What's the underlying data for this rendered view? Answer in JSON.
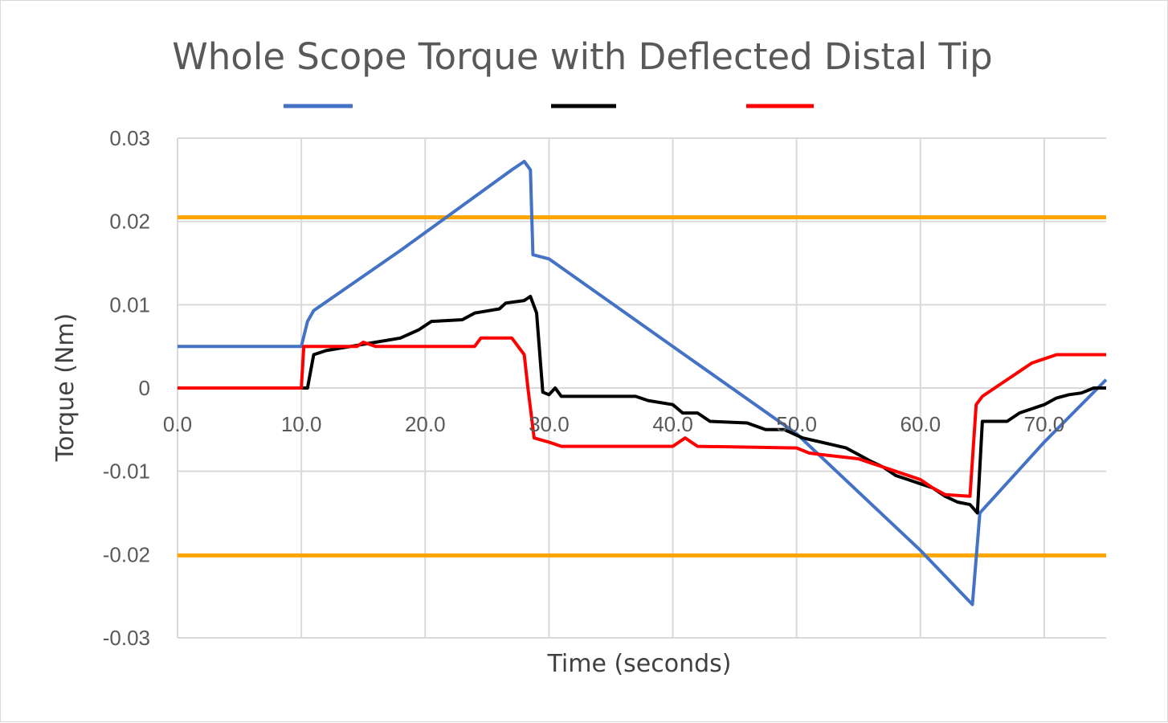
{
  "chart_data": {
    "type": "line",
    "title": "Whole Scope Torque with Deflected Distal Tip",
    "xlabel": "Time (seconds)",
    "ylabel": "Torque (Nm)",
    "xlim": [
      0,
      75
    ],
    "ylim": [
      -0.03,
      0.03
    ],
    "x_ticks": [
      "0.0",
      "10.0",
      "20.0",
      "30.0",
      "40.0",
      "50.0",
      "60.0",
      "70.0"
    ],
    "y_ticks": [
      "0.03",
      "0.02",
      "0.01",
      "0",
      "-0.01",
      "-0.02",
      "-0.03"
    ],
    "grid": true,
    "legend_position": "top",
    "limits": [
      {
        "value": 0.0205,
        "color": "#ffa500"
      },
      {
        "value": -0.0201,
        "color": "#ffa500"
      }
    ],
    "series": [
      {
        "color": "#4472c4",
        "points": [
          [
            0,
            0.005
          ],
          [
            10,
            0.005
          ],
          [
            10.5,
            0.008
          ],
          [
            11,
            0.0093
          ],
          [
            18,
            0.0165
          ],
          [
            27,
            0.0262
          ],
          [
            28,
            0.0272
          ],
          [
            28.5,
            0.0262
          ],
          [
            28.7,
            0.016
          ],
          [
            30,
            0.0155
          ],
          [
            40,
            0.005
          ],
          [
            50,
            -0.0055
          ],
          [
            60,
            -0.0195
          ],
          [
            64.2,
            -0.026
          ],
          [
            64.8,
            -0.015
          ],
          [
            70,
            -0.0065
          ],
          [
            75,
            0.001
          ]
        ]
      },
      {
        "color": "#000000",
        "points": [
          [
            0,
            0
          ],
          [
            10.5,
            0
          ],
          [
            11,
            0.004
          ],
          [
            12,
            0.0045
          ],
          [
            14,
            0.005
          ],
          [
            16,
            0.0055
          ],
          [
            18,
            0.006
          ],
          [
            19.5,
            0.007
          ],
          [
            20.5,
            0.008
          ],
          [
            23,
            0.0082
          ],
          [
            24,
            0.009
          ],
          [
            26,
            0.0095
          ],
          [
            26.5,
            0.0102
          ],
          [
            28,
            0.0105
          ],
          [
            28.5,
            0.011
          ],
          [
            29,
            0.009
          ],
          [
            29.5,
            -0.0005
          ],
          [
            30,
            -0.0008
          ],
          [
            30.5,
            0
          ],
          [
            31,
            -0.001
          ],
          [
            37,
            -0.001
          ],
          [
            38,
            -0.0015
          ],
          [
            40,
            -0.002
          ],
          [
            40.8,
            -0.003
          ],
          [
            42,
            -0.003
          ],
          [
            43,
            -0.004
          ],
          [
            46,
            -0.0042
          ],
          [
            47.5,
            -0.005
          ],
          [
            49,
            -0.005
          ],
          [
            50.5,
            -0.006
          ],
          [
            52,
            -0.0065
          ],
          [
            54,
            -0.0072
          ],
          [
            55,
            -0.008
          ],
          [
            56,
            -0.0088
          ],
          [
            57,
            -0.0095
          ],
          [
            58,
            -0.0105
          ],
          [
            59,
            -0.011
          ],
          [
            60,
            -0.0115
          ],
          [
            61,
            -0.012
          ],
          [
            62,
            -0.013
          ],
          [
            63,
            -0.0137
          ],
          [
            64,
            -0.014
          ],
          [
            64.6,
            -0.015
          ],
          [
            65,
            -0.004
          ],
          [
            67,
            -0.004
          ],
          [
            68,
            -0.003
          ],
          [
            69,
            -0.0025
          ],
          [
            70,
            -0.002
          ],
          [
            71,
            -0.0012
          ],
          [
            72,
            -0.0008
          ],
          [
            73,
            -0.0006
          ],
          [
            74,
            0
          ],
          [
            75,
            0
          ]
        ]
      },
      {
        "color": "#ff0000",
        "points": [
          [
            0,
            0
          ],
          [
            10,
            0
          ],
          [
            10.2,
            0.005
          ],
          [
            14.5,
            0.005
          ],
          [
            15,
            0.0055
          ],
          [
            16,
            0.005
          ],
          [
            24,
            0.005
          ],
          [
            24.5,
            0.006
          ],
          [
            27,
            0.006
          ],
          [
            28,
            0.004
          ],
          [
            28.3,
            0
          ],
          [
            28.8,
            -0.006
          ],
          [
            30,
            -0.0065
          ],
          [
            31,
            -0.007
          ],
          [
            40,
            -0.007
          ],
          [
            41,
            -0.006
          ],
          [
            42,
            -0.007
          ],
          [
            50,
            -0.0072
          ],
          [
            51,
            -0.0078
          ],
          [
            52,
            -0.008
          ],
          [
            55,
            -0.0085
          ],
          [
            56,
            -0.009
          ],
          [
            57,
            -0.0095
          ],
          [
            58,
            -0.01
          ],
          [
            60,
            -0.011
          ],
          [
            61,
            -0.012
          ],
          [
            62,
            -0.0128
          ],
          [
            64,
            -0.013
          ],
          [
            64.5,
            -0.002
          ],
          [
            65,
            -0.001
          ],
          [
            66,
            0
          ],
          [
            67,
            0.001
          ],
          [
            68,
            0.002
          ],
          [
            69,
            0.003
          ],
          [
            70,
            0.0035
          ],
          [
            71,
            0.004
          ],
          [
            75,
            0.004
          ]
        ]
      }
    ]
  }
}
